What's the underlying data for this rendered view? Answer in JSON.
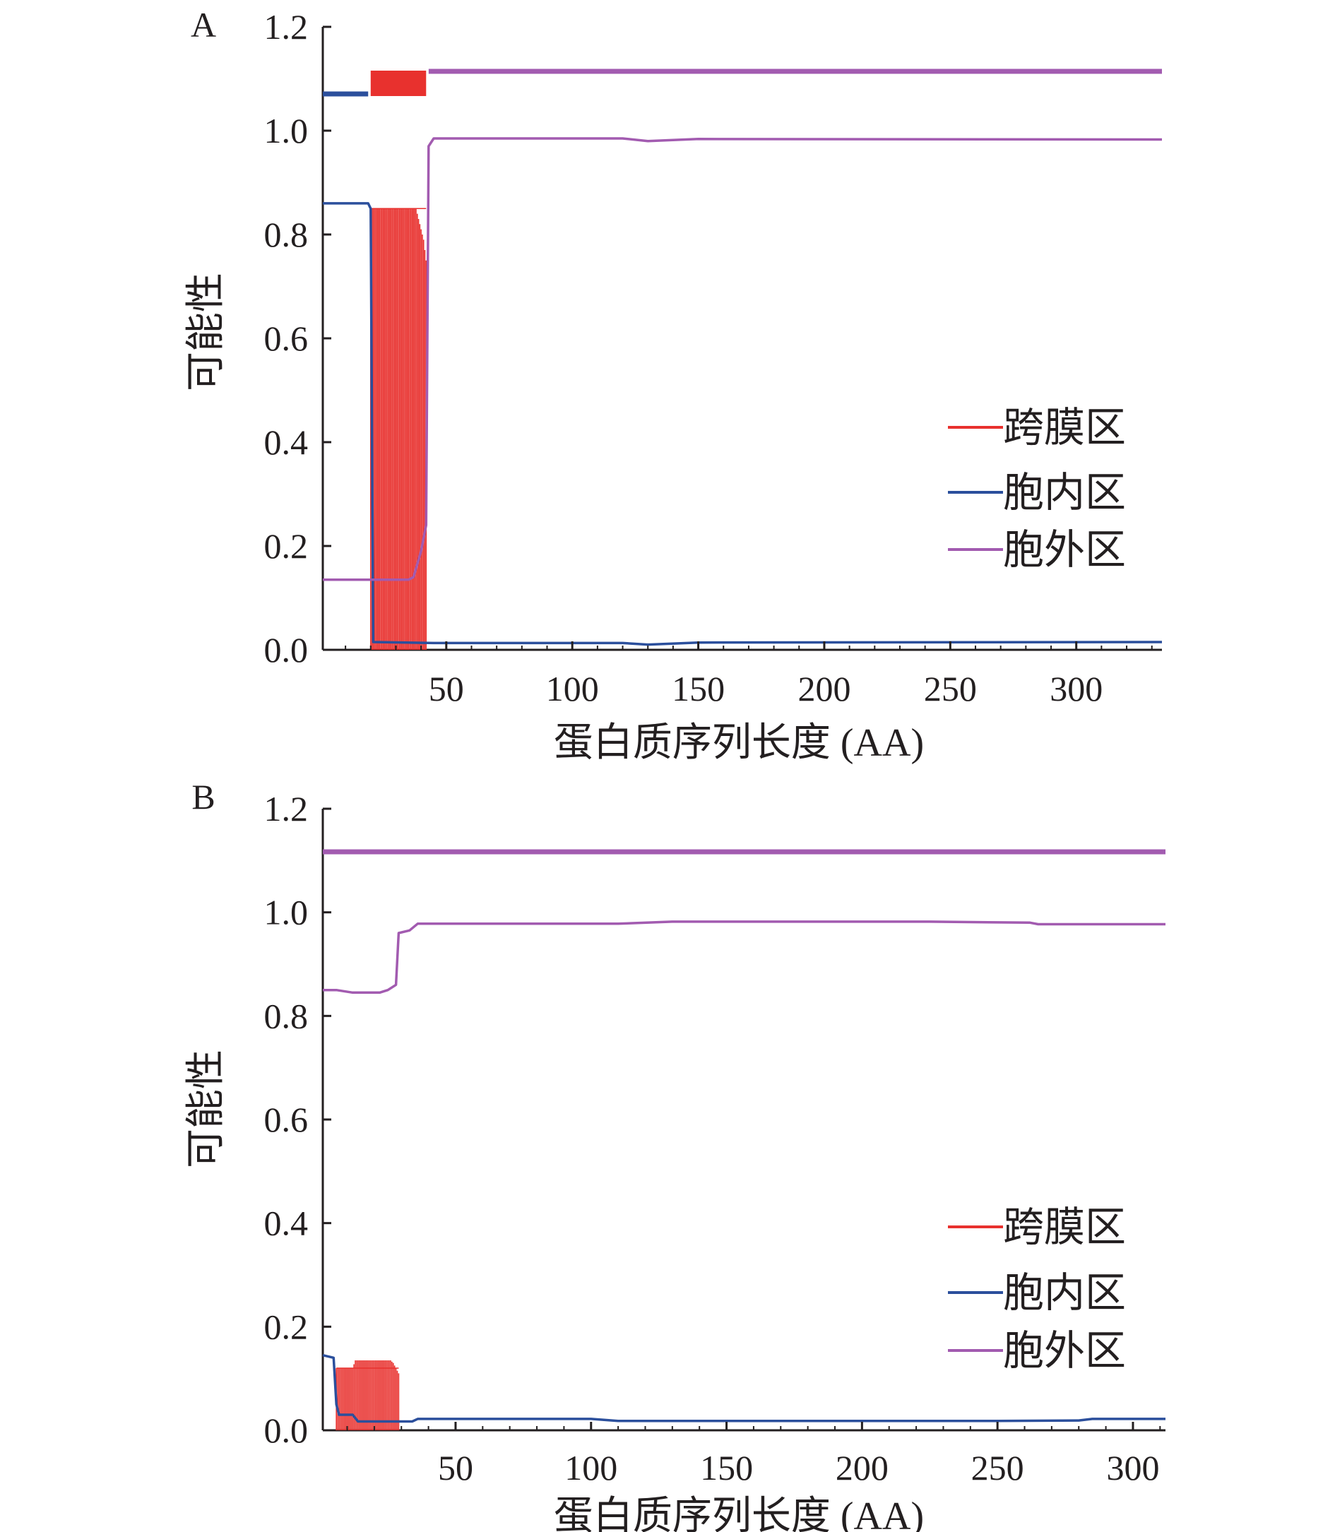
{
  "colors": {
    "tm": "#e8312e",
    "inside": "#2b4f9c",
    "outside": "#a25bb0",
    "axis": "#231f20"
  },
  "chart_data": [
    {
      "panel_label": "A",
      "type": "line",
      "xlabel": "蛋白质序列长度 (AA)",
      "ylabel": "可能性",
      "xlim": [
        1,
        334
      ],
      "ylim": [
        0,
        1.2
      ],
      "xticks": [
        50,
        100,
        150,
        200,
        250,
        300
      ],
      "yticks": [
        0.0,
        0.2,
        0.4,
        0.6,
        0.8,
        1.0,
        1.2
      ],
      "xtick_labels": [
        "50",
        "100",
        "150",
        "200",
        "250",
        "300"
      ],
      "ytick_labels": [
        "0.0",
        "0.2",
        "0.4",
        "0.6",
        "0.8",
        "1.0",
        "1.2"
      ],
      "legend": [
        "跨膜区",
        "胞内区",
        "胞外区"
      ],
      "topology": [
        {
          "name": "胞内区",
          "start": 1,
          "end": 19
        },
        {
          "name": "跨膜区",
          "start": 20,
          "end": 42
        },
        {
          "name": "胞外区",
          "start": 43,
          "end": 334
        }
      ],
      "series": [
        {
          "name": "跨膜区",
          "style": "spikes",
          "x": [
            20,
            42
          ],
          "values": [
            [
              20,
              0.0
            ],
            [
              20.5,
              0.85
            ],
            [
              38,
              0.85
            ],
            [
              39,
              0.83
            ],
            [
              40,
              0.81
            ],
            [
              41,
              0.79
            ],
            [
              42,
              0.75
            ],
            [
              42.5,
              0.0
            ]
          ]
        },
        {
          "name": "胞内区",
          "x": [
            1,
            19,
            20,
            21,
            45,
            120,
            130,
            150,
            334
          ],
          "values": [
            0.86,
            0.86,
            0.85,
            0.015,
            0.013,
            0.013,
            0.01,
            0.014,
            0.015
          ]
        },
        {
          "name": "胞外区",
          "x": [
            1,
            35,
            37,
            40,
            42,
            43,
            45,
            120,
            130,
            150,
            334
          ],
          "values": [
            0.135,
            0.135,
            0.14,
            0.19,
            0.24,
            0.97,
            0.985,
            0.985,
            0.98,
            0.984,
            0.983
          ]
        }
      ]
    },
    {
      "panel_label": "B",
      "type": "line",
      "xlabel": "蛋白质序列长度 (AA)",
      "ylabel": "可能性",
      "xlim": [
        1,
        312
      ],
      "ylim": [
        0,
        1.2
      ],
      "xticks": [
        50,
        100,
        150,
        200,
        250,
        300
      ],
      "yticks": [
        0.0,
        0.2,
        0.4,
        0.6,
        0.8,
        1.0,
        1.2
      ],
      "xtick_labels": [
        "50",
        "100",
        "150",
        "200",
        "250",
        "300"
      ],
      "ytick_labels": [
        "0.0",
        "0.2",
        "0.4",
        "0.6",
        "0.8",
        "1.0",
        "1.2"
      ],
      "legend": [
        "跨膜区",
        "胞内区",
        "胞外区"
      ],
      "topology": [
        {
          "name": "胞外区",
          "start": 1,
          "end": 312
        }
      ],
      "series": [
        {
          "name": "跨膜区",
          "style": "spikes",
          "x": [
            6,
            29
          ],
          "values": [
            [
              6,
              0.0
            ],
            [
              6.5,
              0.12
            ],
            [
              12,
              0.12
            ],
            [
              13,
              0.135
            ],
            [
              26,
              0.135
            ],
            [
              27,
              0.13
            ],
            [
              28,
              0.12
            ],
            [
              29,
              0.11
            ],
            [
              29.5,
              0.0
            ]
          ]
        },
        {
          "name": "胞内区",
          "x": [
            1,
            5,
            6,
            7,
            12,
            14,
            34,
            36,
            100,
            110,
            250,
            280,
            285,
            312
          ],
          "values": [
            0.145,
            0.14,
            0.05,
            0.03,
            0.03,
            0.017,
            0.017,
            0.022,
            0.022,
            0.018,
            0.018,
            0.019,
            0.022,
            0.022
          ]
        },
        {
          "name": "胞外区",
          "x": [
            1,
            6,
            12,
            22,
            25,
            28,
            29,
            33,
            36,
            110,
            130,
            225,
            262,
            265,
            312
          ],
          "values": [
            0.85,
            0.85,
            0.845,
            0.845,
            0.85,
            0.86,
            0.96,
            0.965,
            0.978,
            0.978,
            0.982,
            0.982,
            0.98,
            0.977,
            0.977
          ]
        }
      ]
    }
  ]
}
